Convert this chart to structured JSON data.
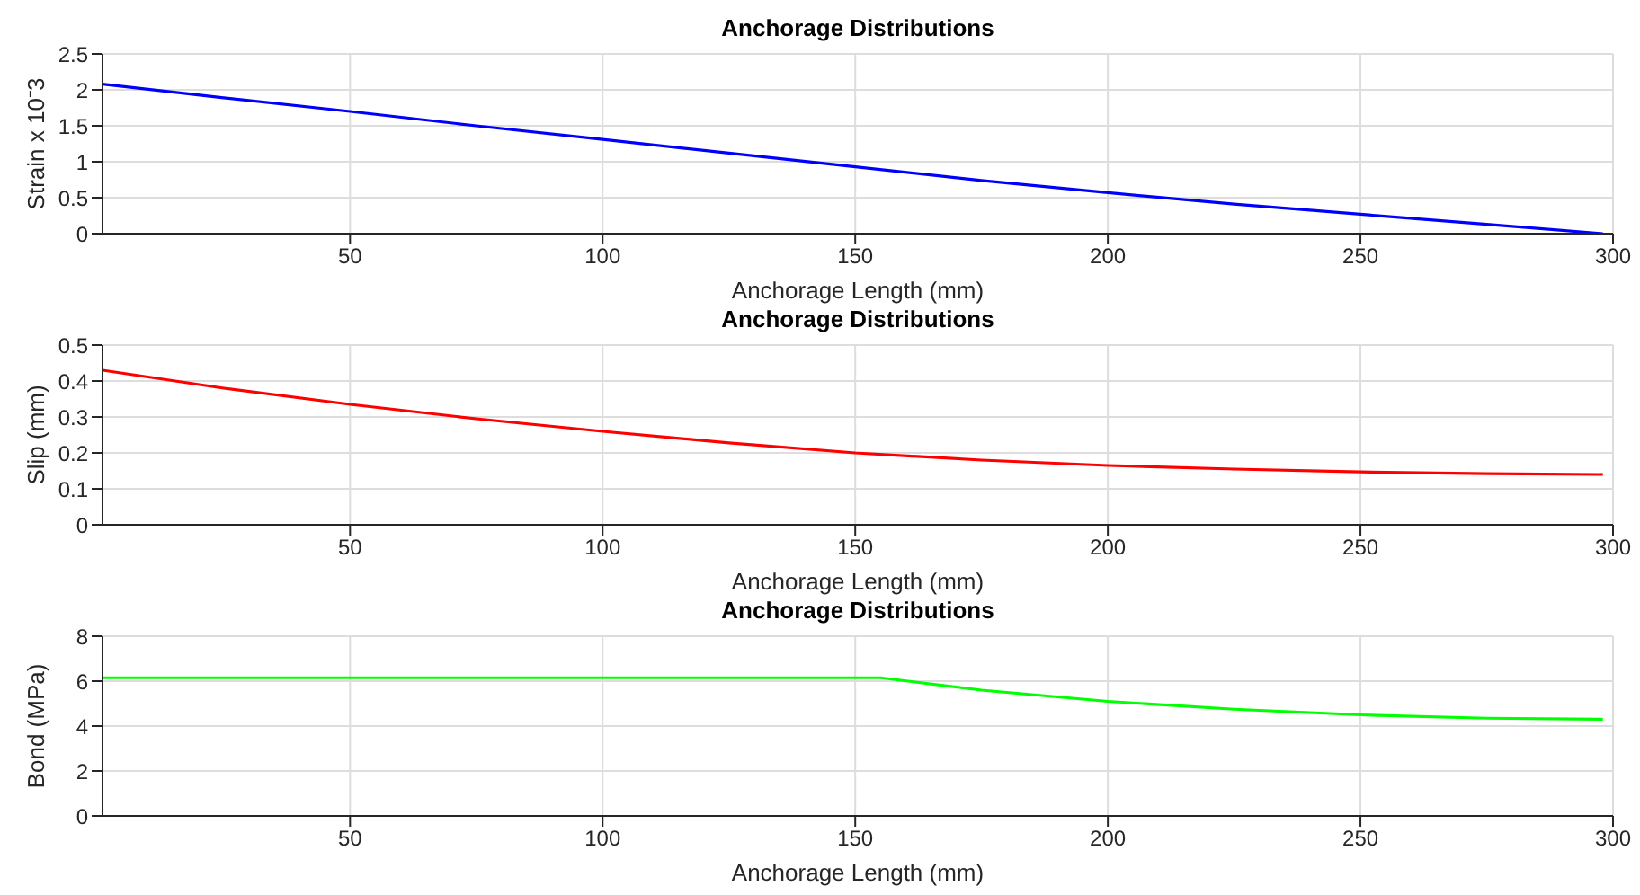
{
  "chart_data": [
    {
      "type": "line",
      "title": "Anchorage Distributions",
      "xlabel": "Anchorage Length (mm)",
      "ylabel": "Strain x 10⁻3",
      "x": [
        1,
        25,
        50,
        75,
        100,
        125,
        150,
        175,
        200,
        225,
        250,
        275,
        298
      ],
      "series": [
        {
          "color": "#0000ff",
          "values": [
            2.08,
            1.89,
            1.7,
            1.5,
            1.31,
            1.12,
            0.93,
            0.74,
            0.57,
            0.41,
            0.27,
            0.13,
            0.0
          ]
        }
      ],
      "xlim": [
        1,
        300
      ],
      "xticks": [
        50,
        100,
        150,
        200,
        250,
        300
      ],
      "ylim": [
        0,
        2.5
      ],
      "yticks": [
        0,
        0.5,
        1,
        1.5,
        2,
        2.5
      ],
      "grid": true,
      "legend": false,
      "marker": "none",
      "line_style": "solid"
    },
    {
      "type": "line",
      "title": "Anchorage Distributions",
      "xlabel": "Anchorage Length (mm)",
      "ylabel": "Slip (mm)",
      "x": [
        1,
        25,
        50,
        75,
        100,
        125,
        150,
        175,
        200,
        225,
        250,
        275,
        298
      ],
      "series": [
        {
          "color": "#ff0000",
          "values": [
            0.43,
            0.38,
            0.335,
            0.295,
            0.26,
            0.228,
            0.2,
            0.18,
            0.165,
            0.155,
            0.147,
            0.142,
            0.14
          ]
        }
      ],
      "xlim": [
        1,
        300
      ],
      "xticks": [
        50,
        100,
        150,
        200,
        250,
        300
      ],
      "ylim": [
        0,
        0.5
      ],
      "yticks": [
        0,
        0.1,
        0.2,
        0.3,
        0.4,
        0.5
      ],
      "grid": true,
      "legend": false,
      "marker": "none",
      "line_style": "solid"
    },
    {
      "type": "line",
      "title": "Anchorage Distributions",
      "xlabel": "Anchorage Length (mm)",
      "ylabel": "Bond (MPa)",
      "x": [
        1,
        50,
        100,
        155,
        175,
        200,
        225,
        250,
        275,
        298
      ],
      "series": [
        {
          "color": "#00ff00",
          "values": [
            6.15,
            6.15,
            6.15,
            6.15,
            5.6,
            5.1,
            4.75,
            4.5,
            4.35,
            4.3
          ]
        }
      ],
      "xlim": [
        1,
        300
      ],
      "xticks": [
        50,
        100,
        150,
        200,
        250,
        300
      ],
      "ylim": [
        0,
        8
      ],
      "yticks": [
        0,
        2,
        4,
        6,
        8
      ],
      "grid": true,
      "legend": false,
      "marker": "none",
      "line_style": "solid"
    }
  ]
}
